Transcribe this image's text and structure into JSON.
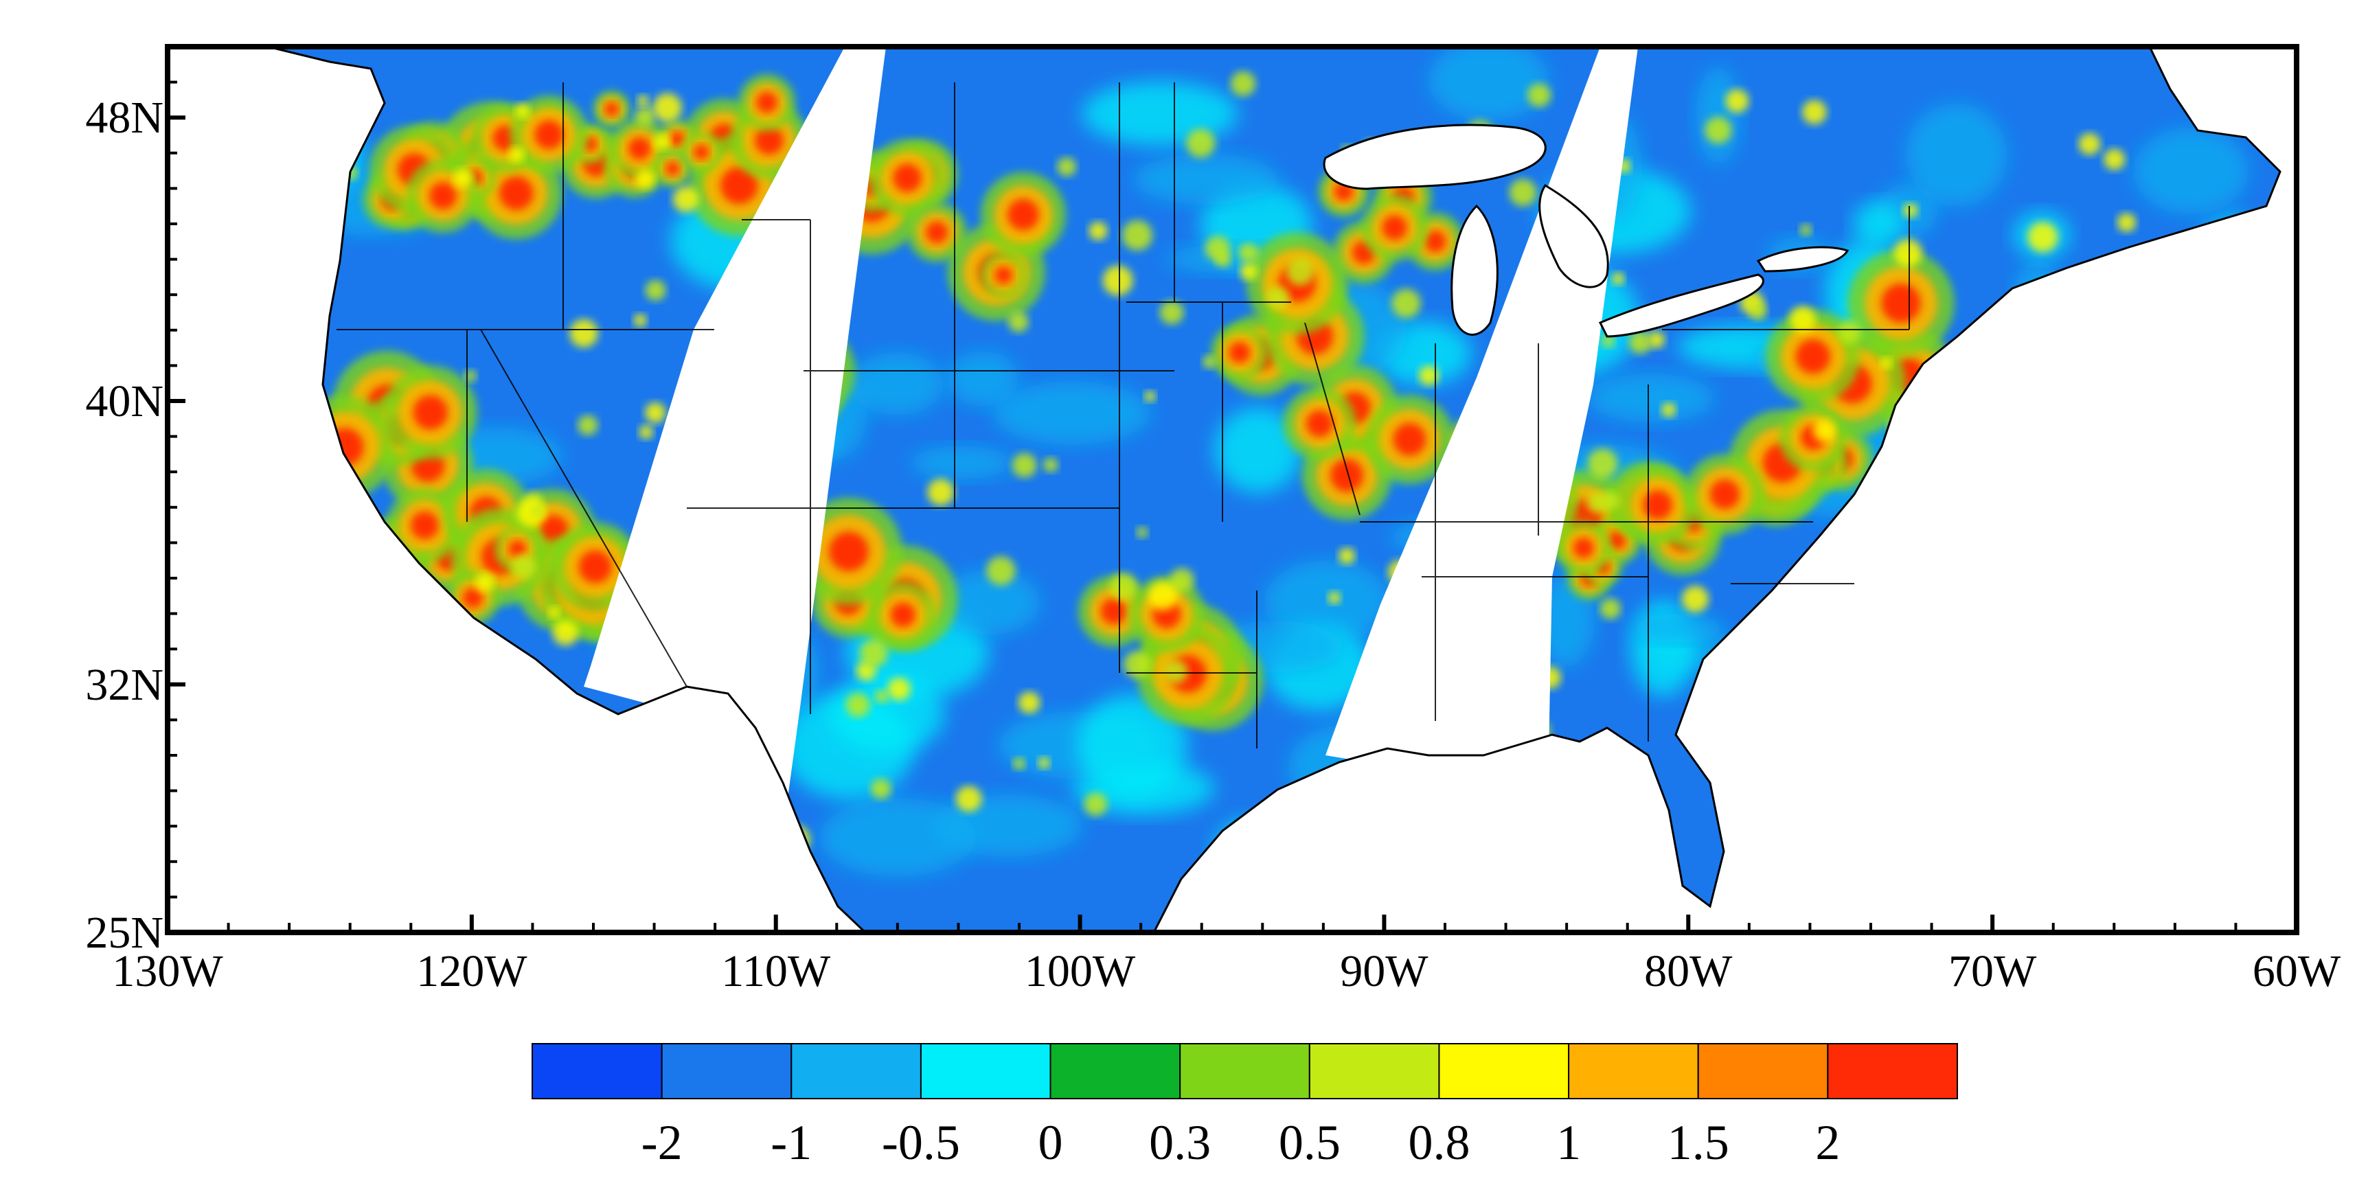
{
  "map": {
    "lon_range": [
      -130,
      -60
    ],
    "lat_range": [
      25,
      50
    ],
    "x_ticks": [
      {
        "lon": -130,
        "label": "130W"
      },
      {
        "lon": -120,
        "label": "120W"
      },
      {
        "lon": -110,
        "label": "110W"
      },
      {
        "lon": -100,
        "label": "100W"
      },
      {
        "lon": -90,
        "label": "90W"
      },
      {
        "lon": -80,
        "label": "80W"
      },
      {
        "lon": -70,
        "label": "70W"
      },
      {
        "lon": -60,
        "label": "60W"
      }
    ],
    "y_ticks": [
      {
        "lat": 25,
        "label": "25N"
      },
      {
        "lat": 32,
        "label": "32N"
      },
      {
        "lat": 40,
        "label": "40N"
      },
      {
        "lat": 48,
        "label": "48N"
      }
    ],
    "colorbar": {
      "colors": [
        "#0a46f5",
        "#1a78ec",
        "#11aef2",
        "#00eefa",
        "#0cb22a",
        "#7fd418",
        "#c4ea14",
        "#fffa00",
        "#ffb000",
        "#ff8200",
        "#ff2a06"
      ],
      "labels": [
        "-2",
        "-1",
        "-0.5",
        "0",
        "0.3",
        "0.5",
        "0.8",
        "1",
        "1.5",
        "2"
      ]
    },
    "colors": {
      "ocean": "#ffffff",
      "coast": "#000000",
      "base_field": "#1a78ec",
      "lake": "#ffffff"
    }
  }
}
